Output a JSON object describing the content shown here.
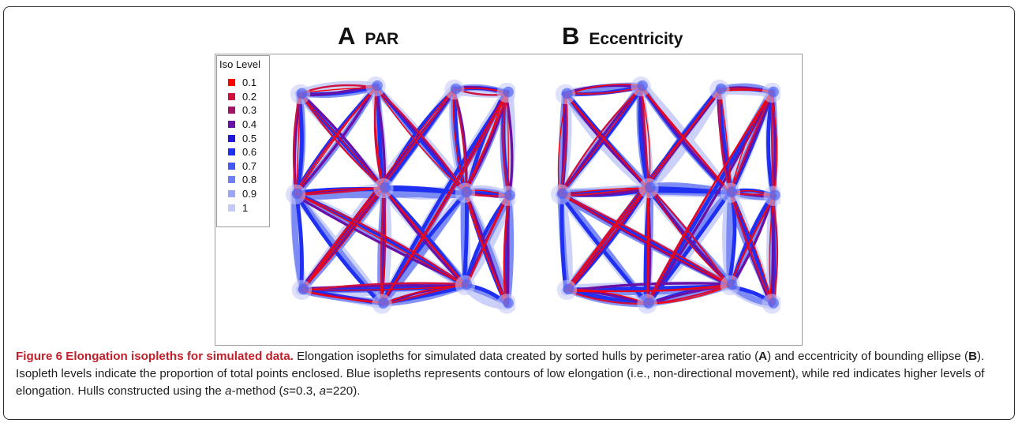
{
  "panels": [
    {
      "letter": "A",
      "name": "PAR"
    },
    {
      "letter": "B",
      "name": "Eccentricity"
    }
  ],
  "legend": {
    "title": "Iso Level",
    "items": [
      {
        "label": "0.1",
        "color": "#ff0000"
      },
      {
        "label": "0.2",
        "color": "#d0103c"
      },
      {
        "label": "0.3",
        "color": "#a01468"
      },
      {
        "label": "0.4",
        "color": "#6a10a6"
      },
      {
        "label": "0.5",
        "color": "#2218dc"
      },
      {
        "label": "0.6",
        "color": "#2030f2"
      },
      {
        "label": "0.7",
        "color": "#4358f4"
      },
      {
        "label": "0.8",
        "color": "#6f80f4"
      },
      {
        "label": "0.9",
        "color": "#9ba6f4"
      },
      {
        "label": "1",
        "color": "#c4c9f8"
      }
    ]
  },
  "caption": {
    "label": "Figure 6 Elongation isopleths for simulated data.",
    "t1": " Elongation isopleths for simulated data created by sorted hulls by perimeter-area ratio (",
    "a": "A",
    "t2": ") and eccentricity of bounding ellipse (",
    "b": "B",
    "t3": "). Isopleth levels indicate the proportion of total points enclosed. Blue isopleths represents contours of low elongation (i.e., non-directional movement), while red indicates higher levels of elongation. Hulls constructed using the ",
    "alpha": "a",
    "t4": "-method (",
    "s": "s",
    "t5": "=0.3, ",
    "a2": "a",
    "t6": "=220)."
  }
}
